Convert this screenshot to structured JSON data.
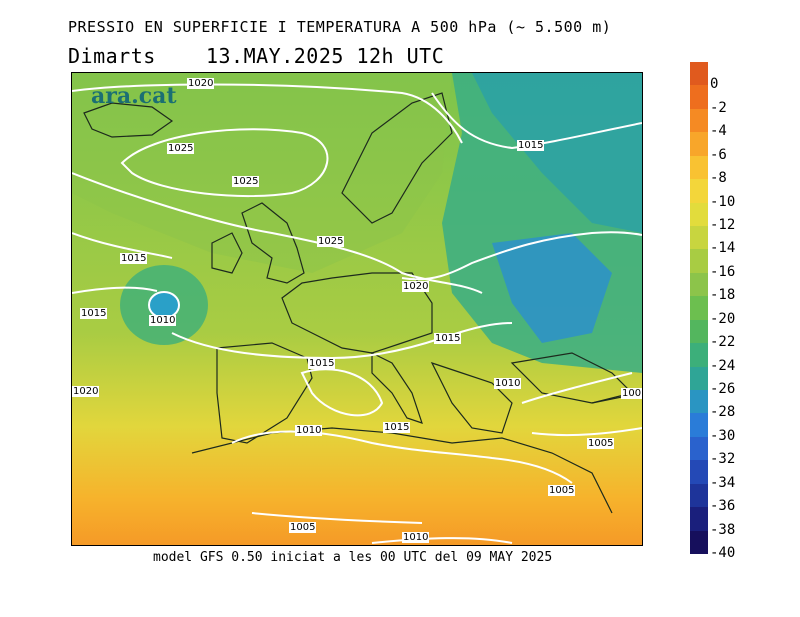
{
  "header": {
    "title": "PRESSIO EN SUPERFICIE I TEMPERATURA A 500 hPa (~ 5.500 m)",
    "day": "Dimarts",
    "datetime": "13.MAY.2025 12h UTC"
  },
  "map": {
    "logo": "ara.cat",
    "isobar_labels": [
      {
        "text": "1020"
      },
      {
        "text": "1025"
      },
      {
        "text": "1025"
      },
      {
        "text": "1025"
      },
      {
        "text": "1015"
      },
      {
        "text": "1015"
      },
      {
        "text": "1010"
      },
      {
        "text": "1015"
      },
      {
        "text": "1020"
      },
      {
        "text": "1020"
      },
      {
        "text": "1015"
      },
      {
        "text": "1015"
      },
      {
        "text": "1010"
      },
      {
        "text": "1015"
      },
      {
        "text": "1010"
      },
      {
        "text": "100"
      },
      {
        "text": "1005"
      },
      {
        "text": "1005"
      },
      {
        "text": "1005"
      },
      {
        "text": "1010"
      }
    ]
  },
  "footer": "model GFS 0.50 iniciat a les 00 UTC del 09 MAY 2025",
  "legend": {
    "unit_levels": [
      "0",
      "-2",
      "-4",
      "-6",
      "-8",
      "-10",
      "-12",
      "-14",
      "-16",
      "-18",
      "-20",
      "-22",
      "-24",
      "-26",
      "-28",
      "-30",
      "-32",
      "-34",
      "-36",
      "-38",
      "-40"
    ],
    "colors": [
      "#e05a1e",
      "#ee6e1e",
      "#f58a23",
      "#f8a62a",
      "#f9c232",
      "#f3d63a",
      "#e2dc3c",
      "#c8d53f",
      "#a8cc43",
      "#8cc44a",
      "#6cbf4f",
      "#53b65e",
      "#3caf7a",
      "#2fa596",
      "#2a95c2",
      "#2a7cd8",
      "#2a62cd",
      "#2449b6",
      "#1e349a",
      "#1a1f7c",
      "#160f5c"
    ]
  }
}
